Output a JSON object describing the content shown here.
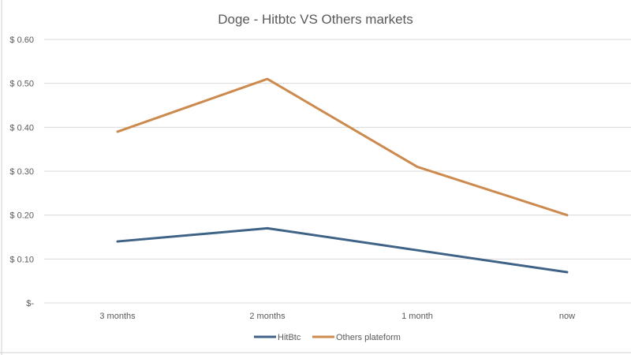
{
  "chart_data": {
    "type": "line",
    "title": "Doge - Hitbtc VS Others markets",
    "xlabel": "",
    "ylabel": "",
    "categories": [
      "3 months",
      "2 months",
      "1 month",
      "now"
    ],
    "series": [
      {
        "name": "HitBtc",
        "color": "#3F6387",
        "values": [
          0.14,
          0.17,
          0.12,
          0.07
        ]
      },
      {
        "name": "Others plateform",
        "color": "#CC8A4E",
        "values": [
          0.39,
          0.51,
          0.31,
          0.2
        ]
      }
    ],
    "ylim": [
      0,
      0.6
    ],
    "yticks": [
      0,
      0.1,
      0.2,
      0.3,
      0.4,
      0.5,
      0.6
    ],
    "ytick_labels": [
      "$-",
      "$ 0.10",
      "$ 0.20",
      "$ 0.30",
      "$ 0.40",
      "$ 0.50",
      "$ 0.60"
    ],
    "grid": true,
    "legend_position": "bottom"
  }
}
